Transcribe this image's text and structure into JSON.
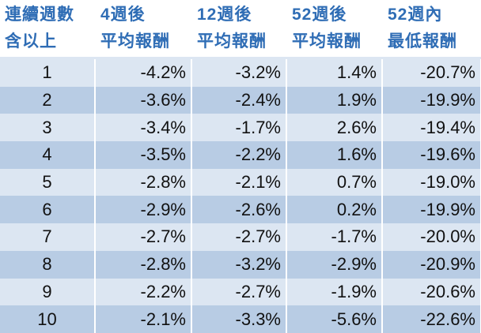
{
  "table": {
    "header": [
      [
        "連續週數",
        "含以上"
      ],
      [
        "4週後",
        "平均報酬"
      ],
      [
        "12週後",
        "平均報酬"
      ],
      [
        "52週後",
        "平均報酬"
      ],
      [
        "52週內",
        "最低報酬"
      ]
    ],
    "rows": [
      [
        "1",
        "-4.2%",
        "-3.2%",
        "1.4%",
        "-20.7%"
      ],
      [
        "2",
        "-3.6%",
        "-2.4%",
        "1.9%",
        "-19.9%"
      ],
      [
        "3",
        "-3.4%",
        "-1.7%",
        "2.6%",
        "-19.4%"
      ],
      [
        "4",
        "-3.5%",
        "-2.2%",
        "1.6%",
        "-19.6%"
      ],
      [
        "5",
        "-2.8%",
        "-2.1%",
        "0.7%",
        "-19.0%"
      ],
      [
        "6",
        "-2.9%",
        "-2.6%",
        "0.2%",
        "-19.9%"
      ],
      [
        "7",
        "-2.7%",
        "-2.7%",
        "-1.7%",
        "-20.0%"
      ],
      [
        "8",
        "-2.8%",
        "-3.2%",
        "-2.9%",
        "-20.9%"
      ],
      [
        "9",
        "-2.2%",
        "-2.7%",
        "-1.9%",
        "-20.6%"
      ],
      [
        "10",
        "-2.1%",
        "-3.3%",
        "-5.6%",
        "-22.6%"
      ]
    ]
  }
}
